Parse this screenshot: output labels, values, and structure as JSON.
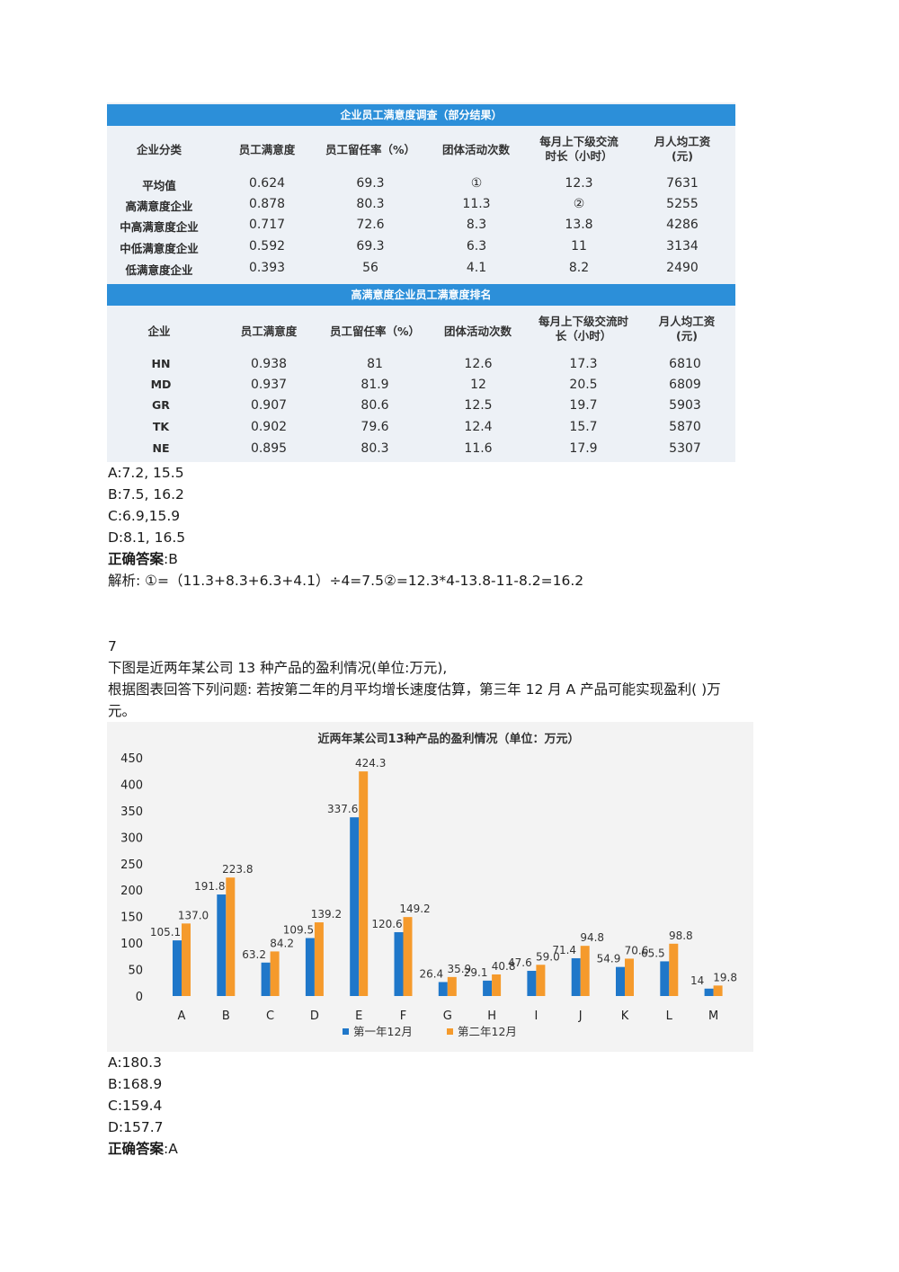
{
  "table1": {
    "title": "企业员工满意度调查（部分结果）",
    "headers": [
      "企业分类",
      "员工满意度",
      "员工留任率（%）",
      "团体活动次数",
      "每月上下级交流\n时长（小时）",
      "月人均工资\n(元)"
    ],
    "rows": [
      [
        "平均值",
        "0.624",
        "69.3",
        "①",
        "12.3",
        "7631"
      ],
      [
        "高满意度企业",
        "0.878",
        "80.3",
        "11.3",
        "②",
        "5255"
      ],
      [
        "中高满意度企业",
        "0.717",
        "72.6",
        "8.3",
        "13.8",
        "4286"
      ],
      [
        "中低满意度企业",
        "0.592",
        "69.3",
        "6.3",
        "11",
        "3134"
      ],
      [
        "低满意度企业",
        "0.393",
        "56",
        "4.1",
        "8.2",
        "2490"
      ]
    ]
  },
  "table2": {
    "title": "高满意度企业员工满意度排名",
    "headers": [
      "企业",
      "员工满意度",
      "员工留任率（%）",
      "团体活动次数",
      "每月上下级交流时\n长（小时）",
      "月人均工资\n(元)"
    ],
    "rows": [
      [
        "HN",
        "0.938",
        "81",
        "12.6",
        "17.3",
        "6810"
      ],
      [
        "MD",
        "0.937",
        "81.9",
        "12",
        "20.5",
        "6809"
      ],
      [
        "GR",
        "0.907",
        "80.6",
        "12.5",
        "19.7",
        "5903"
      ],
      [
        "TK",
        "0.902",
        "79.6",
        "12.4",
        "15.7",
        "5870"
      ],
      [
        "NE",
        "0.895",
        "80.3",
        "11.6",
        "17.9",
        "5307"
      ]
    ]
  },
  "q6": {
    "options": [
      "A:7.2, 15.5",
      "B:7.5, 16.2",
      "C:6.9,15.9",
      "D:8.1, 16.5"
    ],
    "answer_label": "正确答案",
    "answer_value": ":B",
    "analysis": "解析: ①=（11.3+8.3+6.3+4.1）÷4=7.5②=12.3*4-13.8-11-8.2=16.2"
  },
  "q7": {
    "number": "7",
    "line1": "下图是近两年某公司 13 种产品的盈利情况(单位:万元),",
    "line2": "根据图表回答下列问题: 若按第二年的月平均增长速度估算，第三年 12 月 A 产品可能实现盈利(  )万",
    "line3": "元。",
    "options": [
      "A:180.3",
      "B:168.9",
      "C:159.4",
      "D:157.7"
    ],
    "answer_label": "正确答案",
    "answer_value": ":A"
  },
  "chart_data": {
    "type": "bar",
    "title": "近两年某公司13种产品的盈利情况（单位：万元）",
    "categories": [
      "A",
      "B",
      "C",
      "D",
      "E",
      "F",
      "G",
      "H",
      "I",
      "J",
      "K",
      "L",
      "M"
    ],
    "series": [
      {
        "name": "第一年12月",
        "color": "#1f77c9",
        "values": [
          105.1,
          191.8,
          63.2,
          109.5,
          337.6,
          120.6,
          26.4,
          29.1,
          47.6,
          71.4,
          54.9,
          65.5,
          14
        ]
      },
      {
        "name": "第二年12月",
        "color": "#f59a2c",
        "values": [
          137.0,
          223.8,
          84.2,
          139.2,
          424.3,
          149.2,
          35.9,
          40.8,
          59.0,
          94.8,
          70.6,
          98.8,
          19.8
        ]
      }
    ],
    "value_labels": [
      [
        "105.1",
        "191.8",
        "63.2",
        "109.5",
        "337.6",
        "120.6",
        "26.4",
        "29.1",
        "47.6",
        "71.4",
        "54.9",
        "65.5",
        "14"
      ],
      [
        "137.0",
        "223.8",
        "84.2",
        "139.2",
        "424.3",
        "149.2",
        "35.9",
        "40.8",
        "59.0",
        "94.8",
        "70.6",
        "98.8",
        "19.8"
      ]
    ],
    "yticks": [
      "0",
      "50",
      "100",
      "150",
      "200",
      "250",
      "300",
      "350",
      "400",
      "450"
    ],
    "ylim": [
      0,
      450
    ],
    "legend": "bottom"
  }
}
